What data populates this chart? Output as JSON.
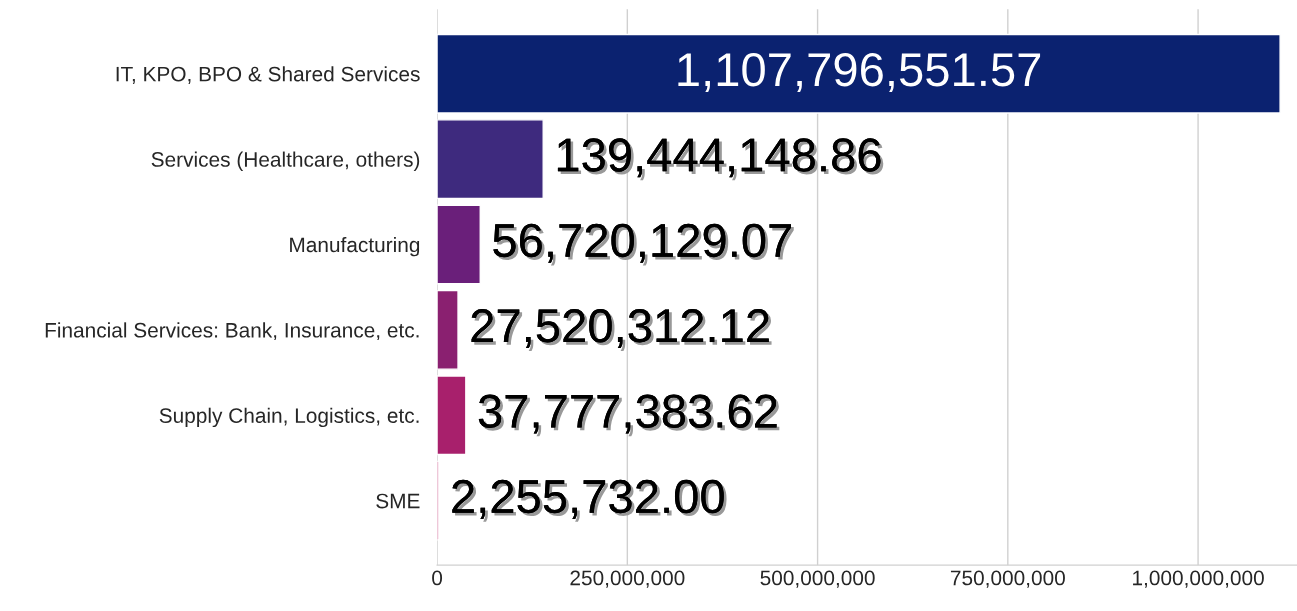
{
  "chart_data": {
    "type": "bar",
    "orientation": "horizontal",
    "categories": [
      "IT, KPO, BPO & Shared Services",
      "Services (Healthcare, others)",
      "Manufacturing",
      "Financial Services: Bank, Insurance, etc.",
      "Supply Chain, Logistics, etc.",
      "SME"
    ],
    "values": [
      1107796551.57,
      139444148.86,
      56720129.07,
      27520312.12,
      37777383.62,
      2255732.0
    ],
    "value_labels": [
      "1,107,796,551.57",
      "139,444,148.86",
      "56,720,129.07",
      "27,520,312.12",
      "37,777,383.62",
      "2,255,732.00"
    ],
    "colors": [
      "#0b2270",
      "#3e2a7e",
      "#6a1f7a",
      "#8a2070",
      "#a8206c",
      "#c02168"
    ],
    "xlim": [
      0,
      1130000000
    ],
    "xticks": [
      0,
      {
        "value": 250000000,
        "label": "250,000,000"
      },
      {
        "value": 500000000,
        "label": "500,000,000"
      },
      {
        "value": 750000000,
        "label": "750,000,000"
      },
      {
        "value": 1000000000,
        "label": "1,000,000,000"
      }
    ],
    "grid": "x"
  }
}
